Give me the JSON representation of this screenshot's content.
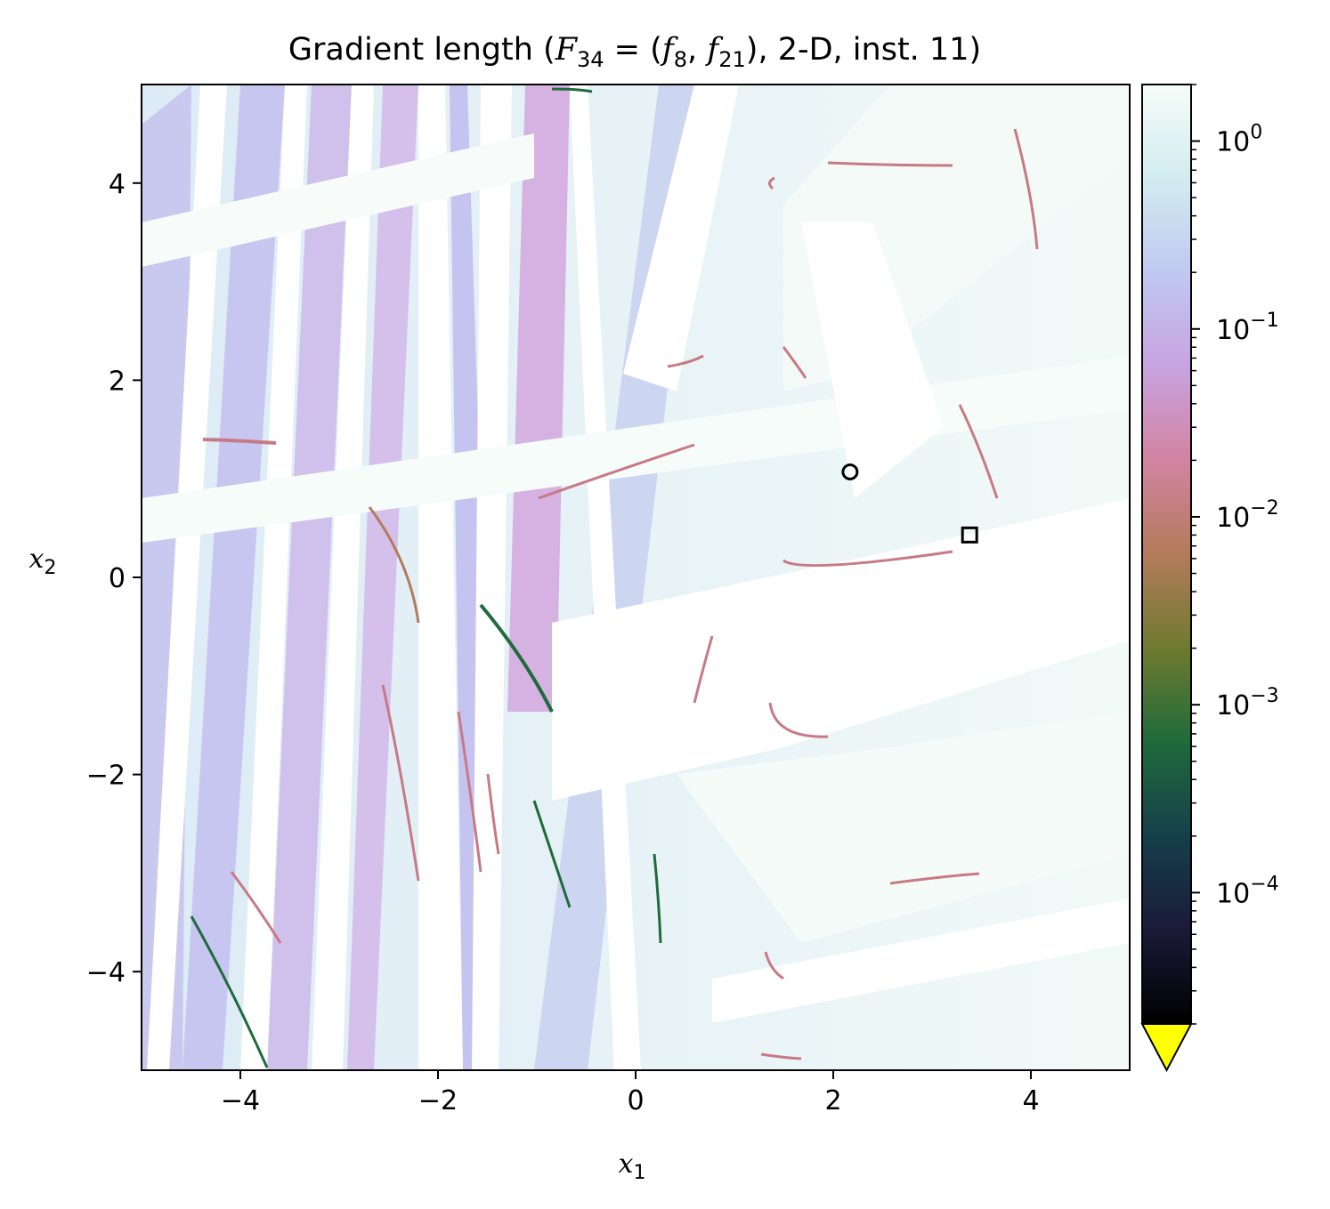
{
  "chart_data": {
    "type": "heatmap",
    "title": "Gradient length (F34 = (f8, f21), 2-D, inst. 11)",
    "title_parts": {
      "prefix": "Gradient length (",
      "F": "F",
      "F_sub": "34",
      "eq": " = (",
      "f1": "f",
      "f1_sub": "8",
      "comma": ", ",
      "f2": "f",
      "f2_sub": "21",
      "suffix": "), 2-D, inst. 11)"
    },
    "xlabel": "x",
    "xlabel_sub": "1",
    "ylabel": "x",
    "ylabel_sub": "2",
    "xlim": [
      -5,
      5
    ],
    "ylim": [
      -5,
      5
    ],
    "xticks": [
      -4,
      -2,
      0,
      2,
      4
    ],
    "yticks": [
      -4,
      -2,
      0,
      2,
      4
    ],
    "colorbar": {
      "scale": "log",
      "range": [
        2e-05,
        2
      ],
      "ticks": [
        {
          "value": 1,
          "base": "10",
          "exp": "0"
        },
        {
          "value": 0.1,
          "base": "10",
          "exp": "−1"
        },
        {
          "value": 0.01,
          "base": "10",
          "exp": "−2"
        },
        {
          "value": 0.001,
          "base": "10",
          "exp": "−3"
        },
        {
          "value": 0.0001,
          "base": "10",
          "exp": "−4"
        }
      ],
      "extend": "min",
      "extend_color": "#ffff00",
      "colormap": [
        "#000000",
        "#1a1a38",
        "#163f4b",
        "#1f6b3b",
        "#6f7a2f",
        "#b37b5b",
        "#d283a2",
        "#c8a3e0",
        "#c0c8f1",
        "#d2ecf0",
        "#f5fcf8"
      ]
    },
    "markers": [
      {
        "shape": "circle",
        "x": 2.17,
        "y": 1.07
      },
      {
        "shape": "square",
        "x": 3.38,
        "y": 0.43
      }
    ],
    "grid": false
  }
}
